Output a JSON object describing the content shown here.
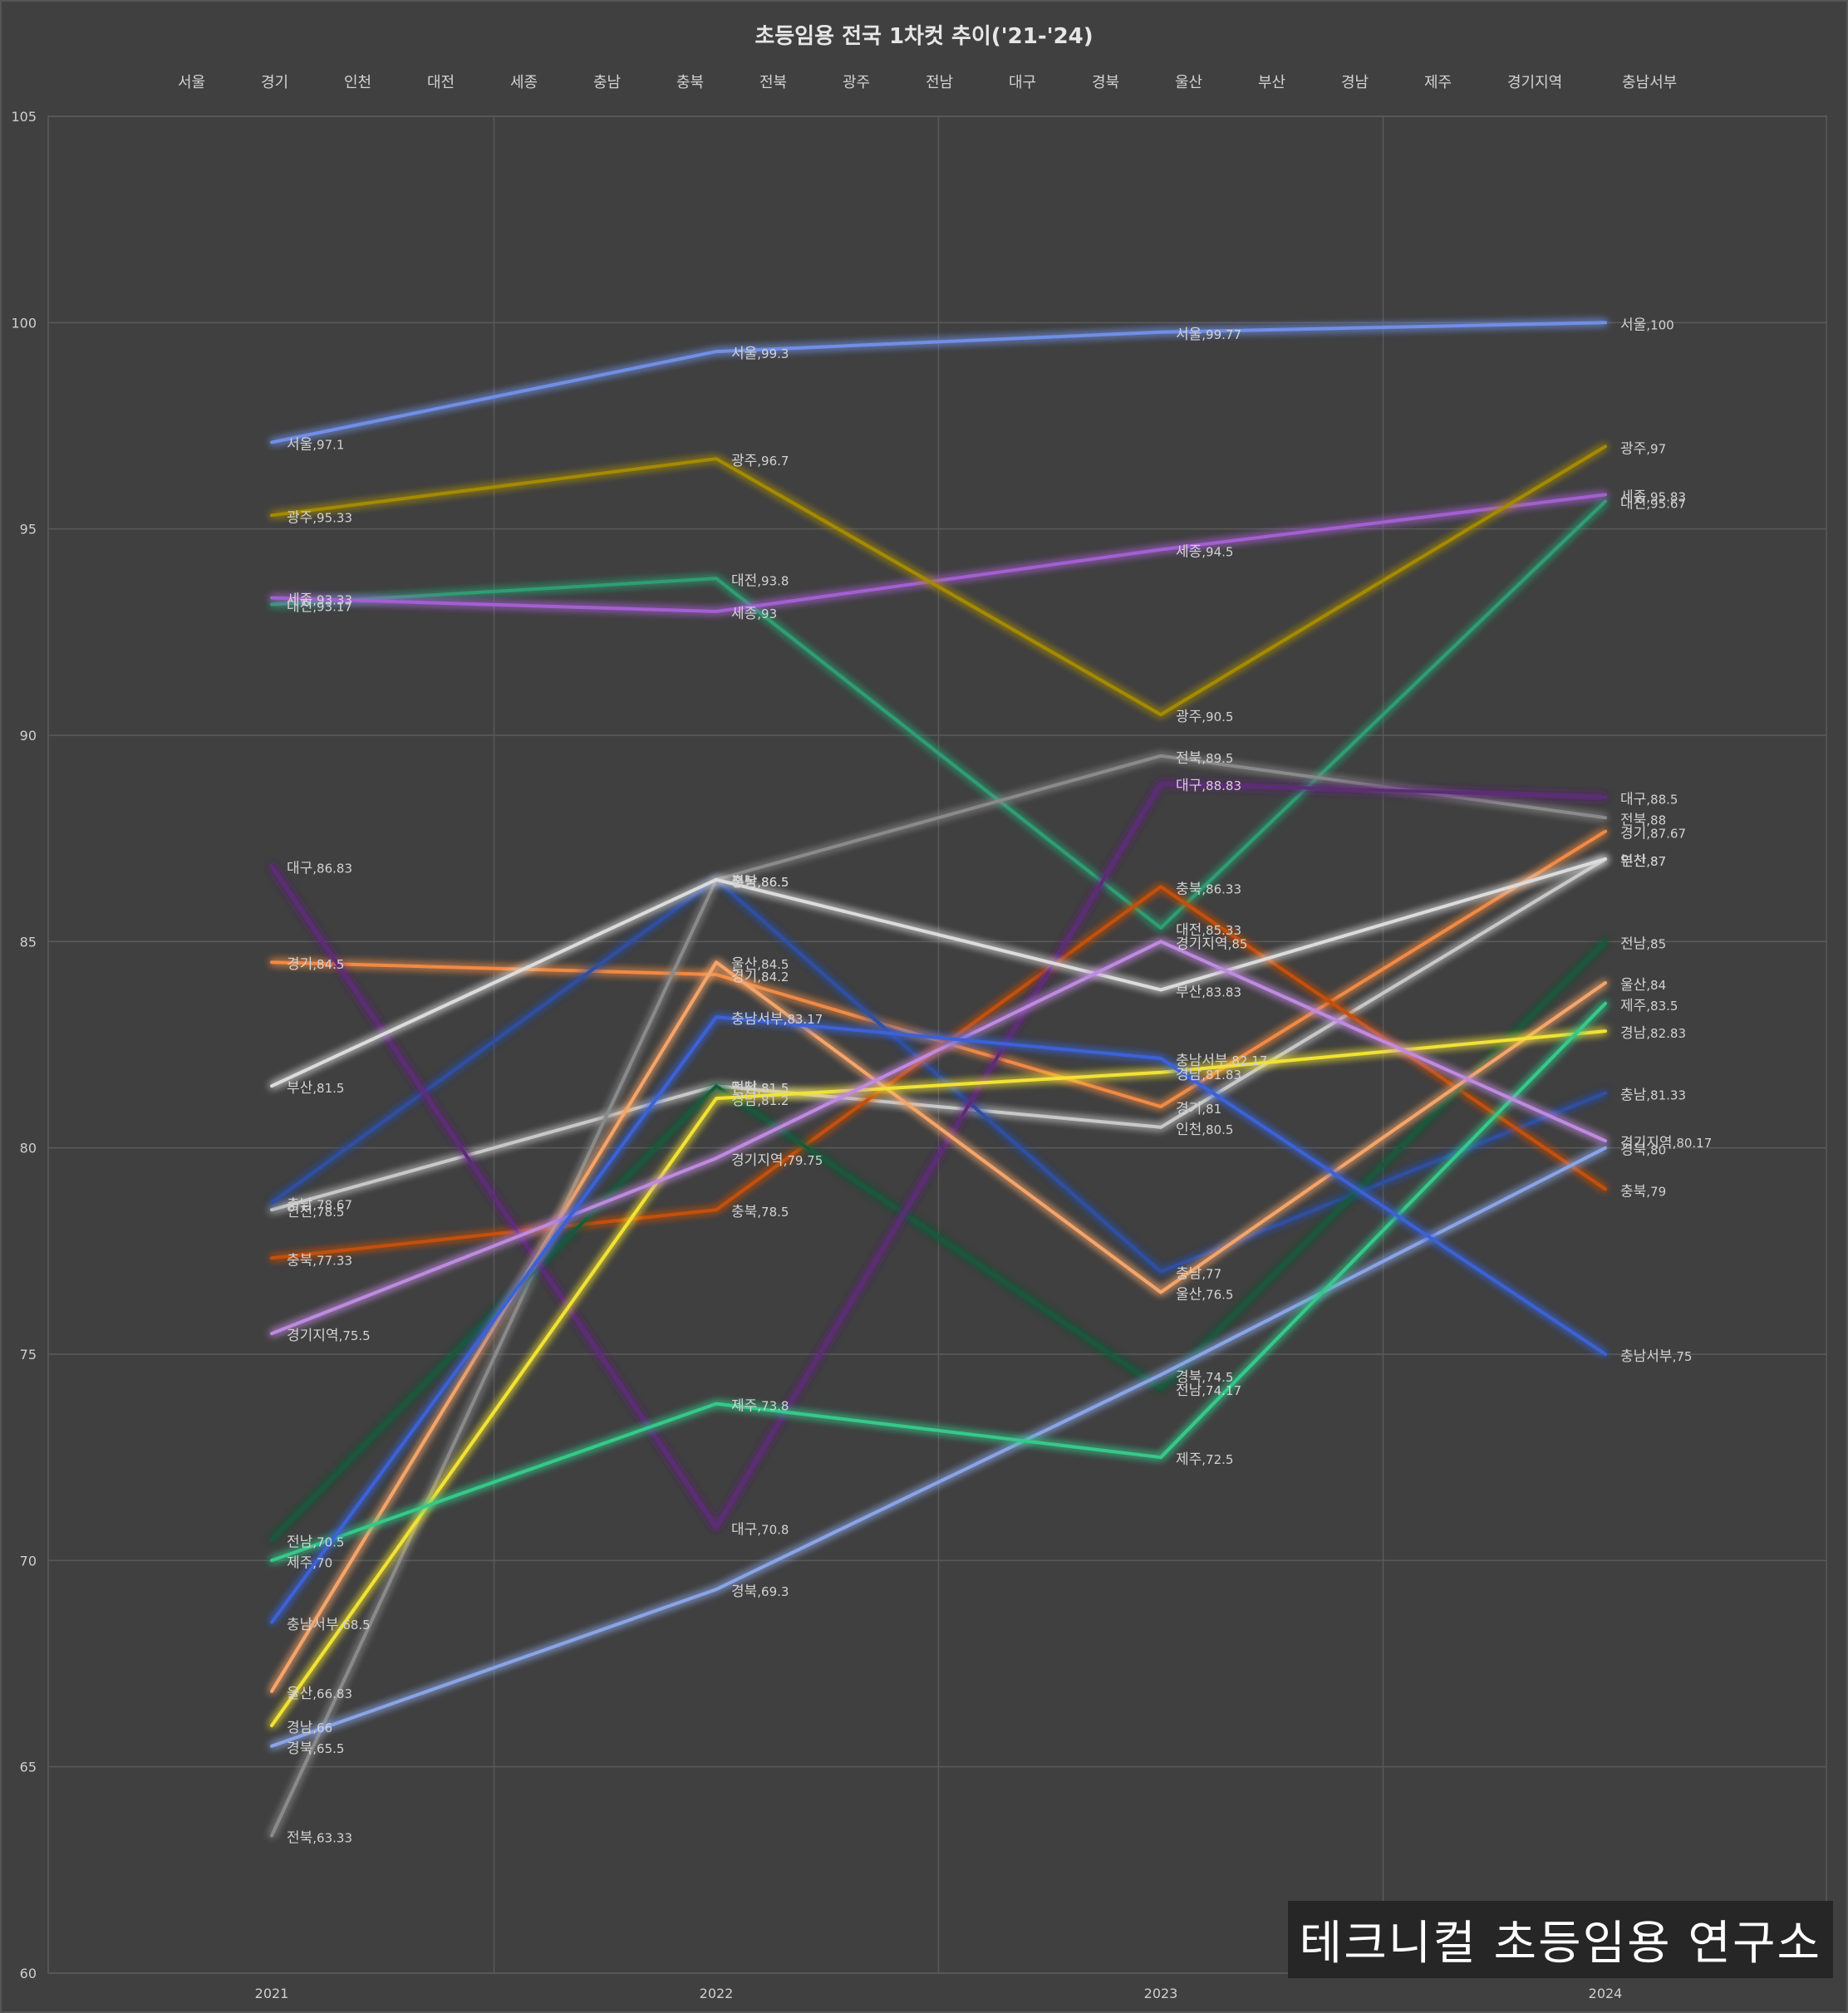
{
  "chart_data": {
    "type": "line",
    "title": "초등임용 전국 1차컷 추이('21-'24)",
    "xlabel": "",
    "ylabel": "",
    "x": [
      "2021",
      "2022",
      "2023",
      "2024"
    ],
    "ylim": [
      60,
      105
    ],
    "yticks": [
      60,
      65,
      70,
      75,
      80,
      85,
      90,
      95,
      100,
      105
    ],
    "grid": true,
    "legend": "top",
    "series": [
      {
        "name": "서울",
        "color": "#6f8fe6",
        "values": [
          97.1,
          99.3,
          99.77,
          100
        ]
      },
      {
        "name": "경기",
        "color": "#f08a45",
        "values": [
          84.5,
          84.2,
          81,
          87.67
        ]
      },
      {
        "name": "인천",
        "color": "#c8c8c8",
        "values": [
          78.5,
          81.5,
          80.5,
          87
        ]
      },
      {
        "name": "대전",
        "color": "#2e9e73",
        "values": [
          93.17,
          93.8,
          85.33,
          95.67
        ]
      },
      {
        "name": "세종",
        "color": "#a45fd1",
        "values": [
          93.33,
          93,
          94.5,
          95.83
        ]
      },
      {
        "name": "충남",
        "color": "#2e4fa3",
        "values": [
          78.67,
          86.5,
          77,
          81.33
        ]
      },
      {
        "name": "충북",
        "color": "#c4500f",
        "values": [
          77.33,
          78.5,
          86.33,
          79
        ]
      },
      {
        "name": "전북",
        "color": "#8a8a8a",
        "values": [
          63.33,
          86.5,
          89.5,
          88
        ]
      },
      {
        "name": "광주",
        "color": "#a58a00",
        "values": [
          95.33,
          96.7,
          90.5,
          97
        ]
      },
      {
        "name": "전남",
        "color": "#175a3a",
        "values": [
          70.5,
          81.5,
          74.17,
          85
        ]
      },
      {
        "name": "대구",
        "color": "#5e2c7a",
        "values": [
          86.83,
          70.8,
          88.83,
          88.5
        ]
      },
      {
        "name": "경북",
        "color": "#8aa5e6",
        "values": [
          65.5,
          69.3,
          74.5,
          80
        ]
      },
      {
        "name": "울산",
        "color": "#f5a56a",
        "values": [
          66.83,
          84.5,
          76.5,
          84
        ]
      },
      {
        "name": "부산",
        "color": "#dcdcdc",
        "values": [
          81.5,
          86.5,
          83.83,
          87
        ]
      },
      {
        "name": "경남",
        "color": "#f2e236",
        "values": [
          66,
          81.2,
          81.83,
          82.83
        ]
      },
      {
        "name": "제주",
        "color": "#35c98a",
        "values": [
          70,
          73.8,
          72.5,
          83.5
        ]
      },
      {
        "name": "경기지역",
        "color": "#c08ae0",
        "values": [
          75.5,
          79.75,
          85,
          80.17
        ]
      },
      {
        "name": "충남서부",
        "color": "#3a62d6",
        "values": [
          68.5,
          83.17,
          82.17,
          75
        ]
      }
    ]
  },
  "watermark": "테크니컬 초등임용 연구소"
}
